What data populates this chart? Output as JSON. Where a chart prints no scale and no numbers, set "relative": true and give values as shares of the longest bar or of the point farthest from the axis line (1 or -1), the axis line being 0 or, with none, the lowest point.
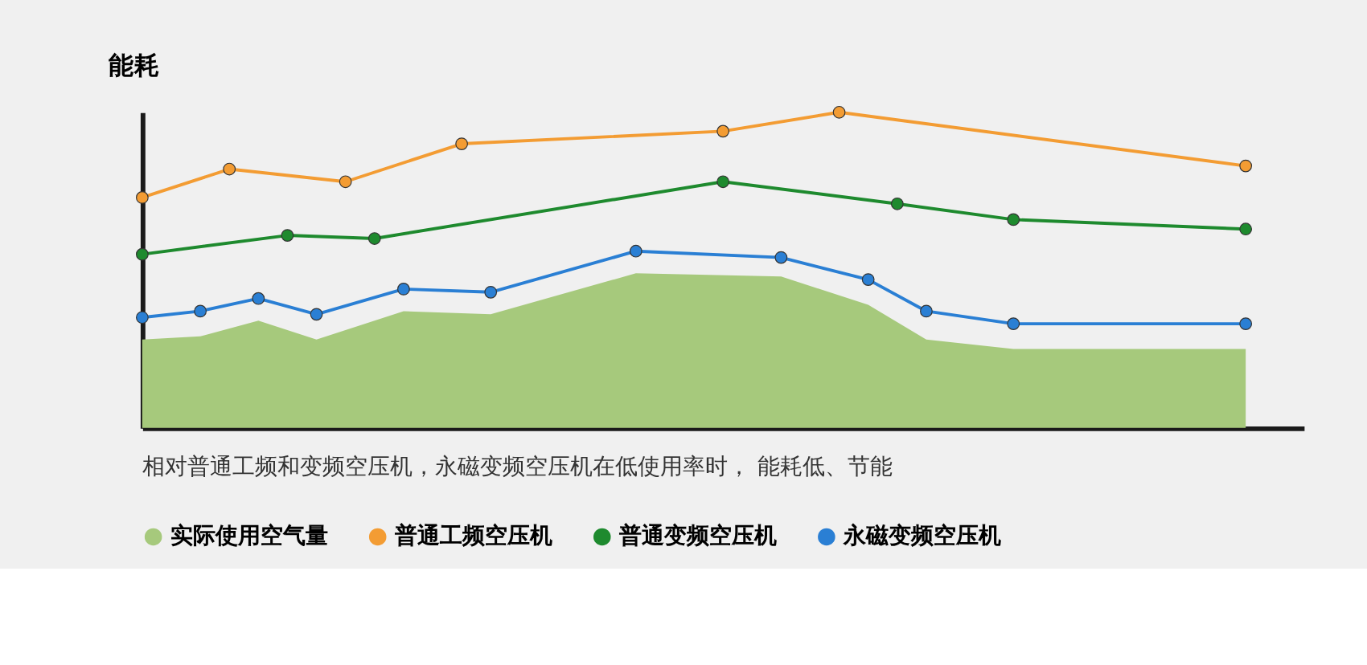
{
  "chart_data": {
    "type": "line",
    "ylabel": "能耗",
    "relative": true,
    "legend": "bottom",
    "marker": "circle",
    "line_style": "solid",
    "annotations": [
      "相对普通工频和变频空压机，永磁变频空压机在低使用率时， 能耗低、节能"
    ],
    "categories": [
      null,
      null,
      null,
      null,
      null,
      null,
      null,
      null,
      null,
      null,
      null,
      null,
      null,
      null,
      null,
      null,
      null,
      null,
      null,
      null,
      null,
      null,
      null,
      null,
      null,
      null,
      null,
      null,
      null,
      null,
      null,
      null,
      null,
      null,
      null,
      null,
      null,
      null,
      null
    ],
    "series": [
      {
        "name": "实际使用空气量",
        "type": "area",
        "marker": "none",
        "color": "#a6c97c",
        "values": [
          0.28,
          null,
          0.29,
          null,
          0.34,
          null,
          0.28,
          null,
          null,
          0.37,
          null,
          null,
          0.36,
          null,
          null,
          null,
          null,
          0.49,
          null,
          null,
          null,
          null,
          0.48,
          null,
          null,
          0.39,
          null,
          0.28,
          null,
          null,
          0.25,
          null,
          null,
          null,
          null,
          null,
          null,
          null,
          0.25
        ]
      },
      {
        "name": "普通工频空压机",
        "color": "#f39c33",
        "values": [
          0.73,
          null,
          null,
          0.82,
          null,
          null,
          null,
          0.78,
          null,
          null,
          null,
          0.9,
          null,
          null,
          null,
          null,
          null,
          null,
          null,
          null,
          0.94,
          null,
          null,
          null,
          1.0,
          null,
          null,
          null,
          null,
          null,
          null,
          null,
          null,
          null,
          null,
          null,
          null,
          null,
          0.83
        ]
      },
      {
        "name": "普通变频空压机",
        "color": "#1e8a2e",
        "values": [
          0.55,
          null,
          null,
          null,
          null,
          0.61,
          null,
          null,
          0.6,
          null,
          null,
          null,
          null,
          null,
          null,
          null,
          null,
          null,
          null,
          null,
          0.78,
          null,
          null,
          null,
          null,
          null,
          0.71,
          null,
          null,
          null,
          0.66,
          null,
          null,
          null,
          null,
          null,
          null,
          null,
          0.63
        ]
      },
      {
        "name": "永磁变频空压机",
        "color": "#2a7fd4",
        "values": [
          0.35,
          null,
          0.37,
          null,
          0.41,
          null,
          0.36,
          null,
          null,
          0.44,
          null,
          null,
          0.43,
          null,
          null,
          null,
          null,
          0.56,
          null,
          null,
          null,
          null,
          0.54,
          null,
          null,
          0.47,
          null,
          0.37,
          null,
          null,
          0.33,
          null,
          null,
          null,
          null,
          null,
          null,
          null,
          0.33
        ]
      }
    ]
  }
}
